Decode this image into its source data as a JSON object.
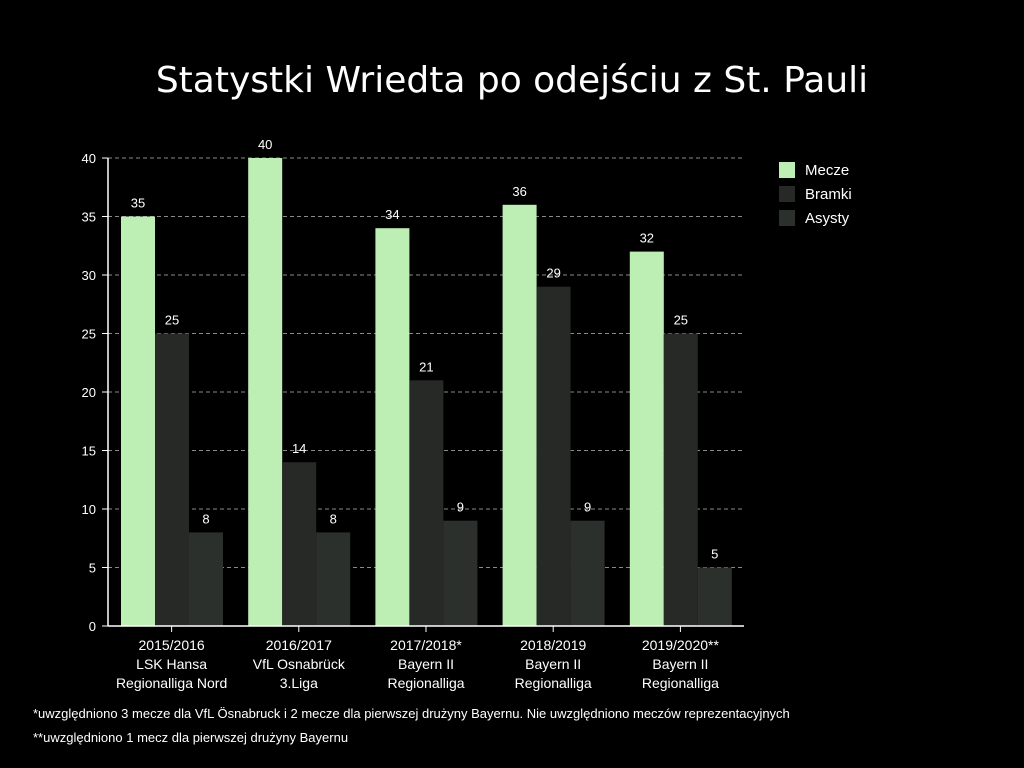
{
  "chart_data": {
    "type": "bar",
    "title": "Statystki Wriedta po odejściu z St. Pauli",
    "categories": [
      [
        "2015/2016",
        "LSK Hansa",
        "Regionalliga Nord"
      ],
      [
        "2016/2017",
        "VfL Osnabrück",
        "3.Liga"
      ],
      [
        "2017/2018*",
        "Bayern II",
        "Regionalliga"
      ],
      [
        "2018/2019",
        "Bayern II",
        "Regionalliga"
      ],
      [
        "2019/2020**",
        "Bayern II",
        "Regionalliga"
      ]
    ],
    "series": [
      {
        "name": "Mecze",
        "color": "#bdeeb4",
        "values": [
          35,
          40,
          34,
          36,
          32
        ]
      },
      {
        "name": "Bramki",
        "color": "#262926",
        "values": [
          25,
          14,
          21,
          29,
          25
        ]
      },
      {
        "name": "Asysty",
        "color": "#2c302c",
        "values": [
          8,
          8,
          9,
          9,
          5
        ]
      }
    ],
    "ylim": [
      0,
      40
    ],
    "yticks": [
      0,
      5,
      10,
      15,
      20,
      25,
      30,
      35,
      40
    ],
    "grid": true,
    "legend": "top-right"
  },
  "footnotes": {
    "note1": "*uwzględniono 3 mecze dla VfL Ösnabruck i 2 mecze dla pierwszej drużyny Bayernu. Nie uwzględniono meczów reprezentacyjnych",
    "note2": "**uwzględniono 1 mecz dla pierwszej drużyny Bayernu"
  }
}
